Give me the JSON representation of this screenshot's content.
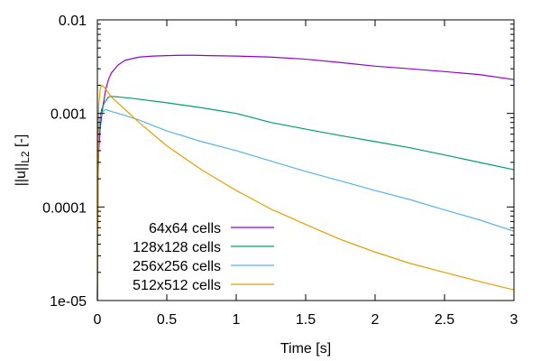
{
  "chart_data": {
    "type": "line",
    "xlabel": "Time [s]",
    "ylabel": {
      "main": "||u||",
      "sub": "L2",
      "suffix": " [-]"
    },
    "xscale": "linear",
    "yscale": "log",
    "xlim": [
      0,
      3
    ],
    "ylim": [
      1e-05,
      0.01
    ],
    "x_ticks": [
      {
        "value": 0,
        "label": "0"
      },
      {
        "value": 0.5,
        "label": "0.5"
      },
      {
        "value": 1,
        "label": "1"
      },
      {
        "value": 1.5,
        "label": "1.5"
      },
      {
        "value": 2,
        "label": "2"
      },
      {
        "value": 2.5,
        "label": "2.5"
      },
      {
        "value": 3,
        "label": "3"
      }
    ],
    "y_ticks": [
      {
        "value": 1e-05,
        "label": "1e-05"
      },
      {
        "value": 0.0001,
        "label": "0.0001"
      },
      {
        "value": 0.001,
        "label": "0.001"
      },
      {
        "value": 0.01,
        "label": "0.01"
      }
    ],
    "grid": false,
    "legend_position": "bottom-left",
    "series": [
      {
        "name": "64x64 cells",
        "color": "#9400d3",
        "points": [
          [
            0,
            1e-05
          ],
          [
            0.005,
            0.0002
          ],
          [
            0.01,
            0.0004
          ],
          [
            0.02,
            0.0007
          ],
          [
            0.04,
            0.0012
          ],
          [
            0.06,
            0.0018
          ],
          [
            0.08,
            0.0023
          ],
          [
            0.1,
            0.0027
          ],
          [
            0.15,
            0.0033
          ],
          [
            0.2,
            0.0037
          ],
          [
            0.3,
            0.004
          ],
          [
            0.4,
            0.0041
          ],
          [
            0.5,
            0.00415
          ],
          [
            0.6,
            0.00418
          ],
          [
            0.7,
            0.00418
          ],
          [
            0.8,
            0.00415
          ],
          [
            1,
            0.0041
          ],
          [
            1.25,
            0.004
          ],
          [
            1.5,
            0.0038
          ],
          [
            1.75,
            0.0035
          ],
          [
            2,
            0.0032
          ],
          [
            2.25,
            0.003
          ],
          [
            2.5,
            0.0028
          ],
          [
            2.75,
            0.0026
          ],
          [
            3,
            0.0023
          ]
        ]
      },
      {
        "name": "128x128 cells",
        "color": "#009e73",
        "points": [
          [
            0,
            1e-05
          ],
          [
            0.005,
            0.0003
          ],
          [
            0.01,
            0.0006
          ],
          [
            0.02,
            0.0009
          ],
          [
            0.03,
            0.0011
          ],
          [
            0.05,
            0.0013
          ],
          [
            0.08,
            0.0015
          ],
          [
            0.1,
            0.00152
          ],
          [
            0.15,
            0.0015
          ],
          [
            0.25,
            0.00145
          ],
          [
            0.5,
            0.0013
          ],
          [
            0.75,
            0.00115
          ],
          [
            1,
            0.001
          ],
          [
            1.25,
            0.0008
          ],
          [
            1.5,
            0.00068
          ],
          [
            1.75,
            0.00058
          ],
          [
            2,
            0.0005
          ],
          [
            2.25,
            0.00043
          ],
          [
            2.5,
            0.00036
          ],
          [
            2.75,
            0.0003
          ],
          [
            3,
            0.00025
          ]
        ]
      },
      {
        "name": "256x256 cells",
        "color": "#56b4e9",
        "points": [
          [
            0,
            1e-05
          ],
          [
            0.005,
            0.0003
          ],
          [
            0.01,
            0.0006
          ],
          [
            0.02,
            0.0009
          ],
          [
            0.04,
            0.00105
          ],
          [
            0.06,
            0.0011
          ],
          [
            0.1,
            0.00105
          ],
          [
            0.2,
            0.00095
          ],
          [
            0.3,
            0.00085
          ],
          [
            0.5,
            0.00065
          ],
          [
            0.75,
            0.0005
          ],
          [
            1,
            0.0004
          ],
          [
            1.25,
            0.00031
          ],
          [
            1.5,
            0.00024
          ],
          [
            1.75,
            0.00019
          ],
          [
            2,
            0.00015
          ],
          [
            2.25,
            0.00012
          ],
          [
            2.5,
            9.3e-05
          ],
          [
            2.75,
            7.3e-05
          ],
          [
            3,
            5.5e-05
          ]
        ]
      },
      {
        "name": "512x512 cells",
        "color": "#e69f00",
        "points": [
          [
            0,
            1e-05
          ],
          [
            0.005,
            0.0005
          ],
          [
            0.01,
            0.0012
          ],
          [
            0.02,
            0.0018
          ],
          [
            0.03,
            0.002
          ],
          [
            0.05,
            0.0019
          ],
          [
            0.1,
            0.0015
          ],
          [
            0.2,
            0.0011
          ],
          [
            0.3,
            0.0008
          ],
          [
            0.5,
            0.00045
          ],
          [
            0.75,
            0.00025
          ],
          [
            1,
            0.00015
          ],
          [
            1.25,
            9.5e-05
          ],
          [
            1.5,
            6.5e-05
          ],
          [
            1.75,
            4.5e-05
          ],
          [
            2,
            3.3e-05
          ],
          [
            2.25,
            2.5e-05
          ],
          [
            2.5,
            2e-05
          ],
          [
            2.75,
            1.6e-05
          ],
          [
            3,
            1.3e-05
          ]
        ]
      }
    ]
  }
}
